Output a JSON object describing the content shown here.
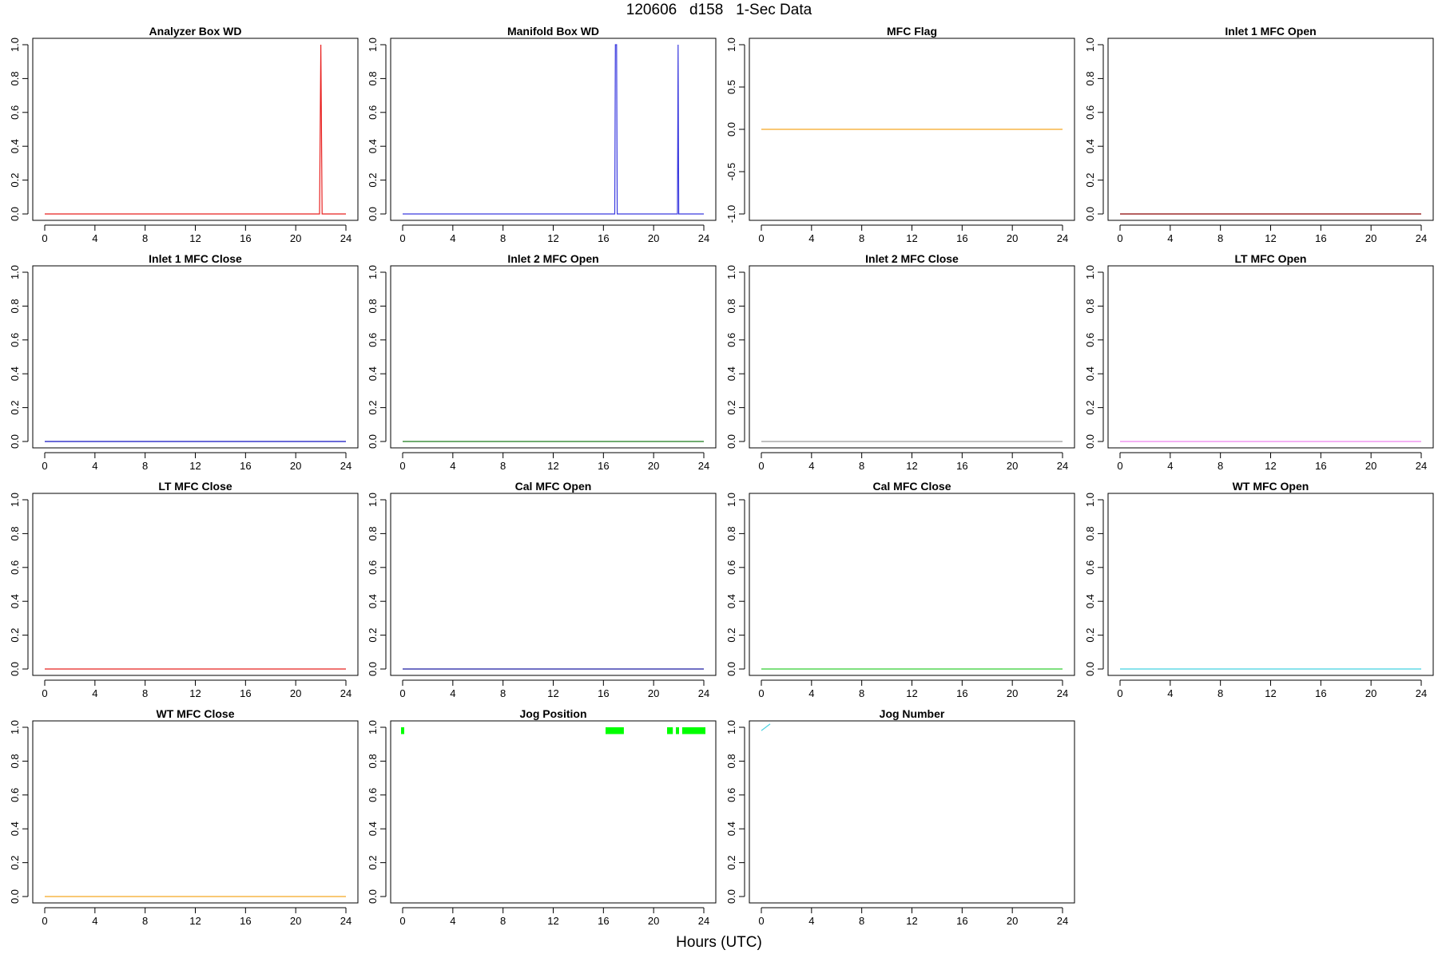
{
  "page": {
    "title": "120606   d158   1-Sec Data",
    "x_axis_label": "Hours (UTC)"
  },
  "chart_data": [
    {
      "type": "line",
      "title": "Analyzer Box WD",
      "color": "#e8201f",
      "xlim": [
        0,
        24
      ],
      "ylim": [
        0,
        1
      ],
      "x_ticks": [
        "0",
        "4",
        "8",
        "12",
        "16",
        "20",
        "24"
      ],
      "y_ticks": [
        "0.0",
        "0.2",
        "0.4",
        "0.6",
        "0.8",
        "1.0"
      ],
      "series": [
        {
          "x": [
            0,
            21.9,
            22.0,
            22.1,
            24
          ],
          "y": [
            0,
            0,
            1,
            0,
            0
          ]
        }
      ]
    },
    {
      "type": "line",
      "title": "Manifold Box WD",
      "color": "#3a3adf",
      "xlim": [
        0,
        24
      ],
      "ylim": [
        0,
        1
      ],
      "x_ticks": [
        "0",
        "4",
        "8",
        "12",
        "16",
        "20",
        "24"
      ],
      "y_ticks": [
        "0.0",
        "0.2",
        "0.4",
        "0.6",
        "0.8",
        "1.0"
      ],
      "series": [
        {
          "x": [
            0,
            16.9,
            16.95,
            17.05,
            17.1,
            21.9,
            21.95,
            22.0,
            24
          ],
          "y": [
            0,
            0,
            1,
            1,
            0,
            0,
            1,
            0,
            0
          ]
        }
      ]
    },
    {
      "type": "line",
      "title": "MFC Flag",
      "color": "#f5a623",
      "xlim": [
        0,
        24
      ],
      "ylim": [
        -1,
        1
      ],
      "x_ticks": [
        "0",
        "4",
        "8",
        "12",
        "16",
        "20",
        "24"
      ],
      "y_ticks": [
        "-1.0",
        "-0.5",
        "0.0",
        "0.5",
        "1.0"
      ],
      "series": [
        {
          "x": [
            0,
            24
          ],
          "y": [
            0,
            0
          ]
        }
      ]
    },
    {
      "type": "line",
      "title": "Inlet 1 MFC Open",
      "color": "#8b0000",
      "xlim": [
        0,
        24
      ],
      "ylim": [
        0,
        1
      ],
      "x_ticks": [
        "0",
        "4",
        "8",
        "12",
        "16",
        "20",
        "24"
      ],
      "y_ticks": [
        "0.0",
        "0.2",
        "0.4",
        "0.6",
        "0.8",
        "1.0"
      ],
      "series": [
        {
          "x": [
            0,
            24
          ],
          "y": [
            0,
            0
          ]
        }
      ]
    },
    {
      "type": "line",
      "title": "Inlet 1 MFC Close",
      "color": "#1010c0",
      "xlim": [
        0,
        24
      ],
      "ylim": [
        0,
        1
      ],
      "x_ticks": [
        "0",
        "4",
        "8",
        "12",
        "16",
        "20",
        "24"
      ],
      "y_ticks": [
        "0.0",
        "0.2",
        "0.4",
        "0.6",
        "0.8",
        "1.0"
      ],
      "series": [
        {
          "x": [
            0,
            24
          ],
          "y": [
            0,
            0
          ]
        }
      ]
    },
    {
      "type": "line",
      "title": "Inlet 2 MFC Open",
      "color": "#1a7a1a",
      "xlim": [
        0,
        24
      ],
      "ylim": [
        0,
        1
      ],
      "x_ticks": [
        "0",
        "4",
        "8",
        "12",
        "16",
        "20",
        "24"
      ],
      "y_ticks": [
        "0.0",
        "0.2",
        "0.4",
        "0.6",
        "0.8",
        "1.0"
      ],
      "series": [
        {
          "x": [
            0,
            24
          ],
          "y": [
            0,
            0
          ]
        }
      ]
    },
    {
      "type": "line",
      "title": "Inlet 2 MFC Close",
      "color": "#999999",
      "xlim": [
        0,
        24
      ],
      "ylim": [
        0,
        1
      ],
      "x_ticks": [
        "0",
        "4",
        "8",
        "12",
        "16",
        "20",
        "24"
      ],
      "y_ticks": [
        "0.0",
        "0.2",
        "0.4",
        "0.6",
        "0.8",
        "1.0"
      ],
      "series": [
        {
          "x": [
            0,
            24
          ],
          "y": [
            0,
            0
          ]
        }
      ]
    },
    {
      "type": "line",
      "title": "LT MFC Open",
      "color": "#ee82ee",
      "xlim": [
        0,
        24
      ],
      "ylim": [
        0,
        1
      ],
      "x_ticks": [
        "0",
        "4",
        "8",
        "12",
        "16",
        "20",
        "24"
      ],
      "y_ticks": [
        "0.0",
        "0.2",
        "0.4",
        "0.6",
        "0.8",
        "1.0"
      ],
      "series": [
        {
          "x": [
            0,
            24
          ],
          "y": [
            0,
            0
          ]
        }
      ]
    },
    {
      "type": "line",
      "title": "LT MFC Close",
      "color": "#e8201f",
      "xlim": [
        0,
        24
      ],
      "ylim": [
        0,
        1
      ],
      "x_ticks": [
        "0",
        "4",
        "8",
        "12",
        "16",
        "20",
        "24"
      ],
      "y_ticks": [
        "0.0",
        "0.2",
        "0.4",
        "0.6",
        "0.8",
        "1.0"
      ],
      "series": [
        {
          "x": [
            0,
            24
          ],
          "y": [
            0,
            0
          ]
        }
      ]
    },
    {
      "type": "line",
      "title": "Cal MFC Open",
      "color": "#1a1aa0",
      "xlim": [
        0,
        24
      ],
      "ylim": [
        0,
        1
      ],
      "x_ticks": [
        "0",
        "4",
        "8",
        "12",
        "16",
        "20",
        "24"
      ],
      "y_ticks": [
        "0.0",
        "0.2",
        "0.4",
        "0.6",
        "0.8",
        "1.0"
      ],
      "series": [
        {
          "x": [
            0,
            24
          ],
          "y": [
            0,
            0
          ]
        }
      ]
    },
    {
      "type": "line",
      "title": "Cal MFC Close",
      "color": "#32cd32",
      "xlim": [
        0,
        24
      ],
      "ylim": [
        0,
        1
      ],
      "x_ticks": [
        "0",
        "4",
        "8",
        "12",
        "16",
        "20",
        "24"
      ],
      "y_ticks": [
        "0.0",
        "0.2",
        "0.4",
        "0.6",
        "0.8",
        "1.0"
      ],
      "series": [
        {
          "x": [
            0,
            24
          ],
          "y": [
            0,
            0
          ]
        }
      ]
    },
    {
      "type": "line",
      "title": "WT MFC Open",
      "color": "#40d0e0",
      "xlim": [
        0,
        24
      ],
      "ylim": [
        0,
        1
      ],
      "x_ticks": [
        "0",
        "4",
        "8",
        "12",
        "16",
        "20",
        "24"
      ],
      "y_ticks": [
        "0.0",
        "0.2",
        "0.4",
        "0.6",
        "0.8",
        "1.0"
      ],
      "series": [
        {
          "x": [
            0,
            24
          ],
          "y": [
            0,
            0
          ]
        }
      ]
    },
    {
      "type": "line",
      "title": "WT MFC Close",
      "color": "#f5a623",
      "xlim": [
        0,
        24
      ],
      "ylim": [
        0,
        1
      ],
      "x_ticks": [
        "0",
        "4",
        "8",
        "12",
        "16",
        "20",
        "24"
      ],
      "y_ticks": [
        "0.0",
        "0.2",
        "0.4",
        "0.6",
        "0.8",
        "1.0"
      ],
      "series": [
        {
          "x": [
            0,
            24
          ],
          "y": [
            0,
            0
          ]
        }
      ]
    },
    {
      "type": "line",
      "title": "Jog Position",
      "color": "#00ff00",
      "xlim": [
        0,
        24
      ],
      "ylim": [
        0,
        1
      ],
      "x_ticks": [
        "0",
        "4",
        "8",
        "12",
        "16",
        "20",
        "24"
      ],
      "y_ticks": [
        "0.0",
        "0.2",
        "0.4",
        "0.6",
        "0.8",
        "1.0"
      ],
      "series": [
        {
          "x": [
            0.0,
            0.0
          ],
          "y": [
            1.0,
            0.96
          ]
        },
        {
          "x": [
            16.3,
            16.3
          ],
          "y": [
            1.0,
            0.96
          ]
        },
        {
          "x": [
            16.5,
            16.5
          ],
          "y": [
            1.0,
            0.96
          ]
        },
        {
          "x": [
            16.7,
            16.7
          ],
          "y": [
            1.0,
            0.96
          ]
        },
        {
          "x": [
            16.9,
            16.9
          ],
          "y": [
            1.0,
            0.96
          ]
        },
        {
          "x": [
            17.1,
            17.1
          ],
          "y": [
            1.0,
            0.96
          ]
        },
        {
          "x": [
            17.3,
            17.3
          ],
          "y": [
            1.0,
            0.96
          ]
        },
        {
          "x": [
            17.5,
            17.5
          ],
          "y": [
            1.0,
            0.96
          ]
        },
        {
          "x": [
            21.2,
            21.2
          ],
          "y": [
            1.0,
            0.96
          ]
        },
        {
          "x": [
            21.4,
            21.4
          ],
          "y": [
            1.0,
            0.96
          ]
        },
        {
          "x": [
            21.9,
            21.9
          ],
          "y": [
            1.0,
            0.96
          ]
        },
        {
          "x": [
            22.4,
            22.4
          ],
          "y": [
            1.0,
            0.96
          ]
        },
        {
          "x": [
            22.6,
            22.6
          ],
          "y": [
            1.0,
            0.96
          ]
        },
        {
          "x": [
            22.8,
            22.8
          ],
          "y": [
            1.0,
            0.96
          ]
        },
        {
          "x": [
            23.0,
            23.0
          ],
          "y": [
            1.0,
            0.96
          ]
        },
        {
          "x": [
            23.2,
            23.2
          ],
          "y": [
            1.0,
            0.96
          ]
        },
        {
          "x": [
            23.4,
            23.4
          ],
          "y": [
            1.0,
            0.96
          ]
        },
        {
          "x": [
            23.6,
            23.6
          ],
          "y": [
            1.0,
            0.96
          ]
        },
        {
          "x": [
            23.8,
            23.8
          ],
          "y": [
            1.0,
            0.96
          ]
        },
        {
          "x": [
            24.0,
            24.0
          ],
          "y": [
            1.0,
            0.96
          ]
        }
      ]
    },
    {
      "type": "line",
      "title": "Jog Number",
      "color": "#40d0e0",
      "xlim": [
        0,
        24
      ],
      "ylim": [
        0,
        1
      ],
      "x_ticks": [
        "0",
        "4",
        "8",
        "12",
        "16",
        "20",
        "24"
      ],
      "y_ticks": [
        "0.0",
        "0.2",
        "0.4",
        "0.6",
        "0.8",
        "1.0"
      ],
      "series": [
        {
          "x": [
            0,
            0.7
          ],
          "y": [
            0.98,
            1.02
          ]
        }
      ]
    }
  ]
}
